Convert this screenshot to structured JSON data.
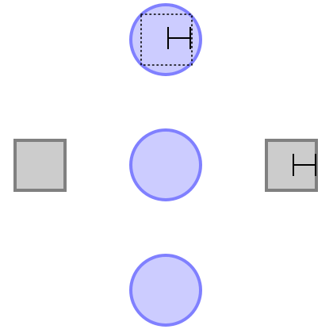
{
  "diagram": {
    "nodes": [
      {
        "id": "top-circle",
        "shape": "circle",
        "fill": "#ccccff",
        "stroke": "#8080ff",
        "has_selection_box": true,
        "marker_icon": "bracket-icon"
      },
      {
        "id": "center-circle",
        "shape": "circle",
        "fill": "#ccccff",
        "stroke": "#8080ff"
      },
      {
        "id": "bottom-circle",
        "shape": "circle",
        "fill": "#ccccff",
        "stroke": "#8080ff"
      },
      {
        "id": "left-square",
        "shape": "square",
        "fill": "#cccccc",
        "stroke": "#808080"
      },
      {
        "id": "right-square",
        "shape": "square",
        "fill": "#cccccc",
        "stroke": "#808080",
        "marker_icon": "bracket-icon"
      }
    ]
  },
  "colors": {
    "background": "#ffffff",
    "marker": "#000000",
    "selection_box": "#000000"
  }
}
